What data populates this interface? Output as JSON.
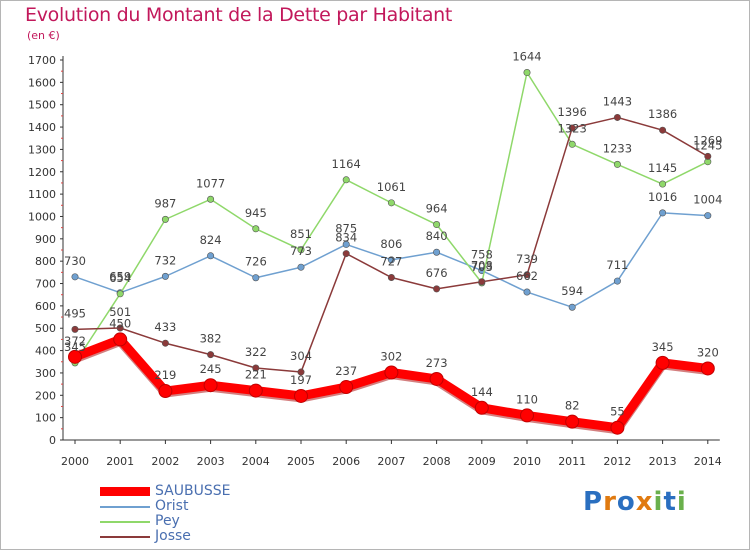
{
  "title": "Evolution du Montant de la Dette par Habitant",
  "subtitle": "(en €)",
  "logo": {
    "text": "Proxiti",
    "letters": [
      "P",
      "r",
      "o",
      "x",
      "i",
      "t",
      "i"
    ],
    "colors": [
      "#2a6fc0",
      "#e07a10",
      "#2a6fc0",
      "#e07a10",
      "#6ab04c",
      "#2a6fc0",
      "#6ab04c"
    ]
  },
  "chart_data": {
    "type": "line",
    "title": "Evolution du Montant de la Dette par Habitant",
    "ylabel": "(en €)",
    "xlabel": "",
    "x": [
      "2000",
      "2001",
      "2002",
      "2003",
      "2004",
      "2005",
      "2006",
      "2007",
      "2008",
      "2009",
      "2010",
      "2011",
      "2012",
      "2013",
      "2014"
    ],
    "ylim": [
      0,
      1700
    ],
    "yticks": [
      0,
      100,
      200,
      300,
      400,
      500,
      600,
      700,
      800,
      900,
      1000,
      1100,
      1200,
      1300,
      1400,
      1500,
      1600,
      1700
    ],
    "grid": false,
    "legend_position": "bottom-left",
    "series": [
      {
        "name": "SAUBUSSE",
        "color": "#ff0000",
        "values": [
          372,
          450,
          219,
          245,
          221,
          197,
          237,
          302,
          273,
          144,
          110,
          82,
          55,
          345,
          320
        ]
      },
      {
        "name": "Orist",
        "color": "#6fa0d0",
        "values": [
          730,
          659,
          732,
          824,
          726,
          773,
          875,
          806,
          840,
          758,
          662,
          594,
          711,
          1016,
          1004
        ]
      },
      {
        "name": "Pey",
        "color": "#8fd86a",
        "values": [
          345,
          654,
          987,
          1077,
          945,
          851,
          1164,
          1061,
          964,
          703,
          1644,
          1323,
          1233,
          1145,
          1245
        ]
      },
      {
        "name": "Josse",
        "color": "#8b3a3a",
        "values": [
          495,
          501,
          433,
          382,
          322,
          304,
          834,
          727,
          676,
          708,
          739,
          1396,
          1443,
          1386,
          1269
        ]
      }
    ]
  }
}
